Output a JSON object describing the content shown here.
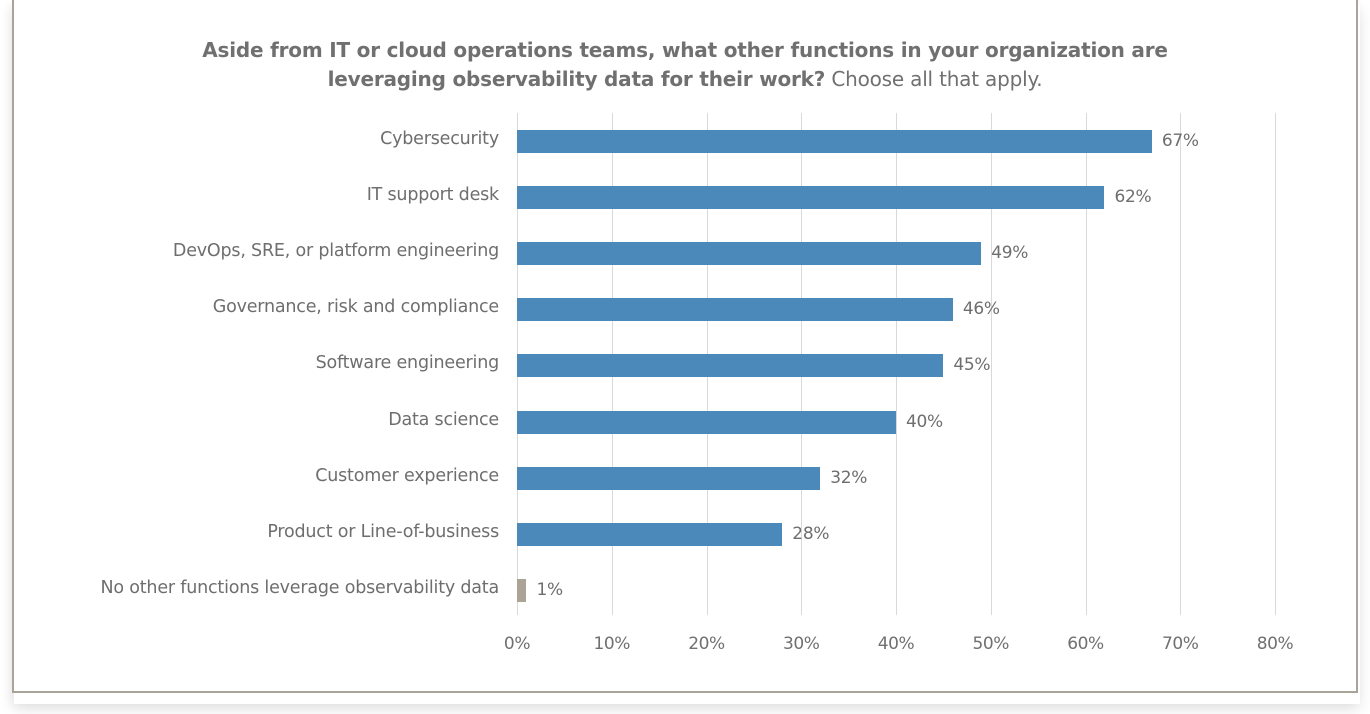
{
  "chart_data": {
    "type": "bar",
    "orientation": "horizontal",
    "title": "Aside from IT or cloud operations teams, what other functions in your organization are leveraging observability data for their work?",
    "subtitle": "Choose all that apply.",
    "categories": [
      "Cybersecurity",
      "IT support desk",
      "DevOps, SRE, or platform engineering",
      "Governance, risk and compliance",
      "Software engineering",
      "Data science",
      "Customer experience",
      "Product or Line-of-business",
      "No other functions leverage observability data"
    ],
    "values": [
      67,
      62,
      49,
      46,
      45,
      40,
      32,
      28,
      1
    ],
    "value_labels": [
      "67%",
      "62%",
      "49%",
      "46%",
      "45%",
      "40%",
      "32%",
      "28%",
      "1%"
    ],
    "bar_colors": [
      "#4a89b9",
      "#4a89b9",
      "#4a89b9",
      "#4a89b9",
      "#4a89b9",
      "#4a89b9",
      "#4a89b9",
      "#4a89b9",
      "#aaa396"
    ],
    "xlabel": "",
    "ylabel": "",
    "xlim": [
      0,
      80
    ],
    "x_ticks": [
      "0%",
      "10%",
      "20%",
      "30%",
      "40%",
      "50%",
      "60%",
      "70%",
      "80%"
    ],
    "grid": true,
    "legend": null
  },
  "title": {
    "bold": "Aside from IT or cloud operations teams, what other functions in your organization are leveraging observability data for their work?",
    "light": " Choose all that apply.",
    "line1": "Aside from IT or cloud operations teams, what other functions in your organization are",
    "line2_bold": "leveraging observability data for their work?",
    "line2_light": " Choose all that apply."
  }
}
